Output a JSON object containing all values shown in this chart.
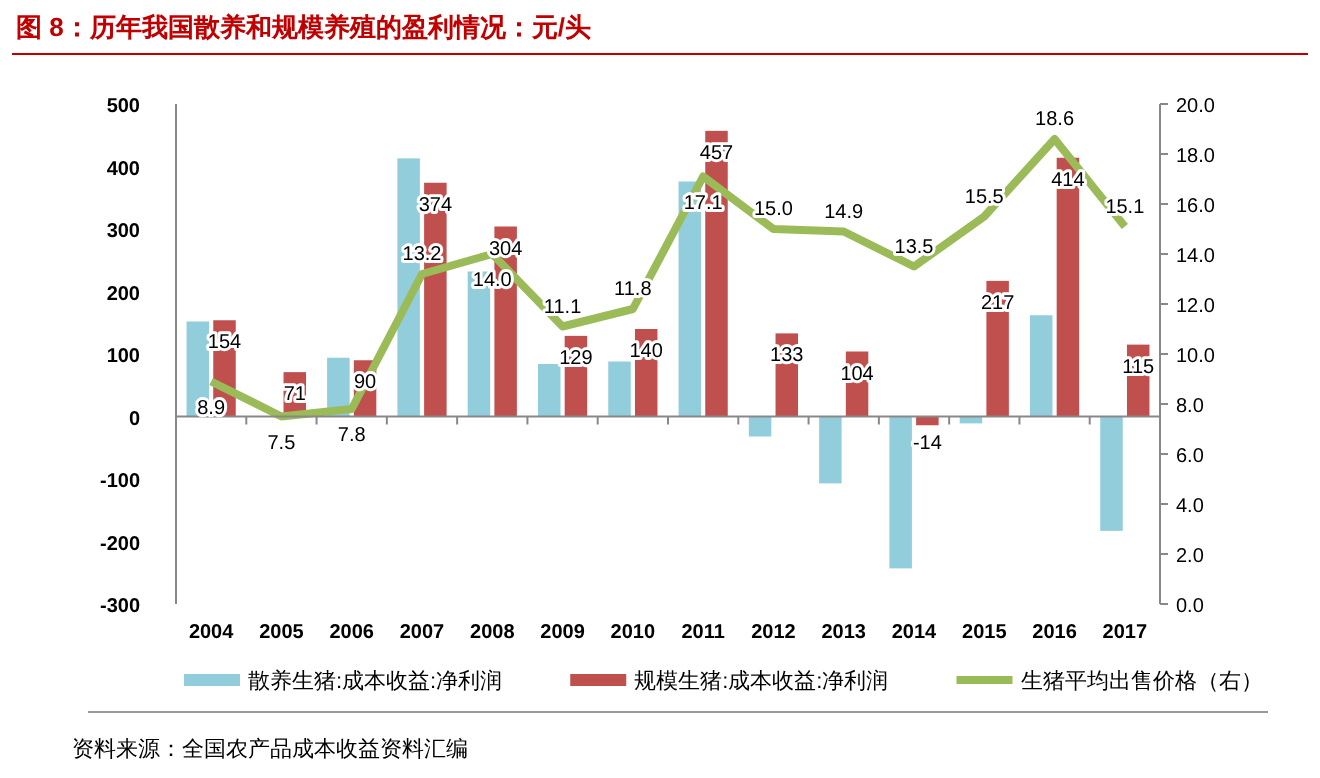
{
  "chart_data": {
    "type": "bar",
    "title": "图 8：历年我国散养和规模养殖的盈利情况：元/头",
    "categories": [
      "2004",
      "2005",
      "2006",
      "2007",
      "2008",
      "2009",
      "2010",
      "2011",
      "2012",
      "2013",
      "2014",
      "2015",
      "2016",
      "2017"
    ],
    "series": [
      {
        "name": "散养生猪:成本收益:净利润",
        "color": "#92cddc",
        "values": [
          152,
          null,
          94,
          413,
          232,
          84,
          88,
          376,
          -32,
          -107,
          -243,
          -11,
          162,
          -183
        ]
      },
      {
        "name": "规模生猪:成本收益:净利润",
        "color": "#c0504d",
        "values": [
          154,
          71,
          90,
          374,
          304,
          129,
          140,
          457,
          133,
          104,
          -14,
          217,
          414,
          115
        ],
        "value_labels": [
          "154",
          "71",
          "90",
          "374",
          "304",
          "129",
          "140",
          "457",
          "133",
          "104",
          "-14",
          "217",
          "414",
          "115"
        ]
      },
      {
        "name": "生猪平均出售价格（右）",
        "type": "line",
        "axis": "y2",
        "color": "#9bbb59",
        "values": [
          8.9,
          7.5,
          7.8,
          13.2,
          14.0,
          11.1,
          11.8,
          17.1,
          15.0,
          14.9,
          13.5,
          15.5,
          18.6,
          15.1
        ],
        "value_labels": [
          "8.9",
          "7.5",
          "7.8",
          "13.2",
          "14.0",
          "11.1",
          "11.8",
          "17.1",
          "15.0",
          "14.9",
          "13.5",
          "15.5",
          "18.6",
          "15.1"
        ]
      }
    ],
    "ylim": [
      -300,
      500
    ],
    "yticks": [
      -300,
      -200,
      -100,
      0,
      100,
      200,
      300,
      400,
      500
    ],
    "y2lim": [
      0,
      20
    ],
    "y2ticks": [
      {
        "value": 0,
        "label": "0.0"
      },
      {
        "value": 2,
        "label": "2.0"
      },
      {
        "value": 4,
        "label": "4.0"
      },
      {
        "value": 6,
        "label": "6.0"
      },
      {
        "value": 8,
        "label": "8.0"
      },
      {
        "value": 10,
        "label": "10.0"
      },
      {
        "value": 12,
        "label": "12.0"
      },
      {
        "value": 14,
        "label": "14.0"
      },
      {
        "value": 16,
        "label": "16.0"
      },
      {
        "value": 18,
        "label": "18.0"
      },
      {
        "value": 20,
        "label": "20.0"
      }
    ],
    "legend": "bottom",
    "grid": false,
    "ref_lines": [
      {
        "axis": "y",
        "value": 0,
        "color": "#888888"
      }
    ],
    "annotations": [
      "资料来源：全国农产品成本收益资料汇编"
    ]
  }
}
